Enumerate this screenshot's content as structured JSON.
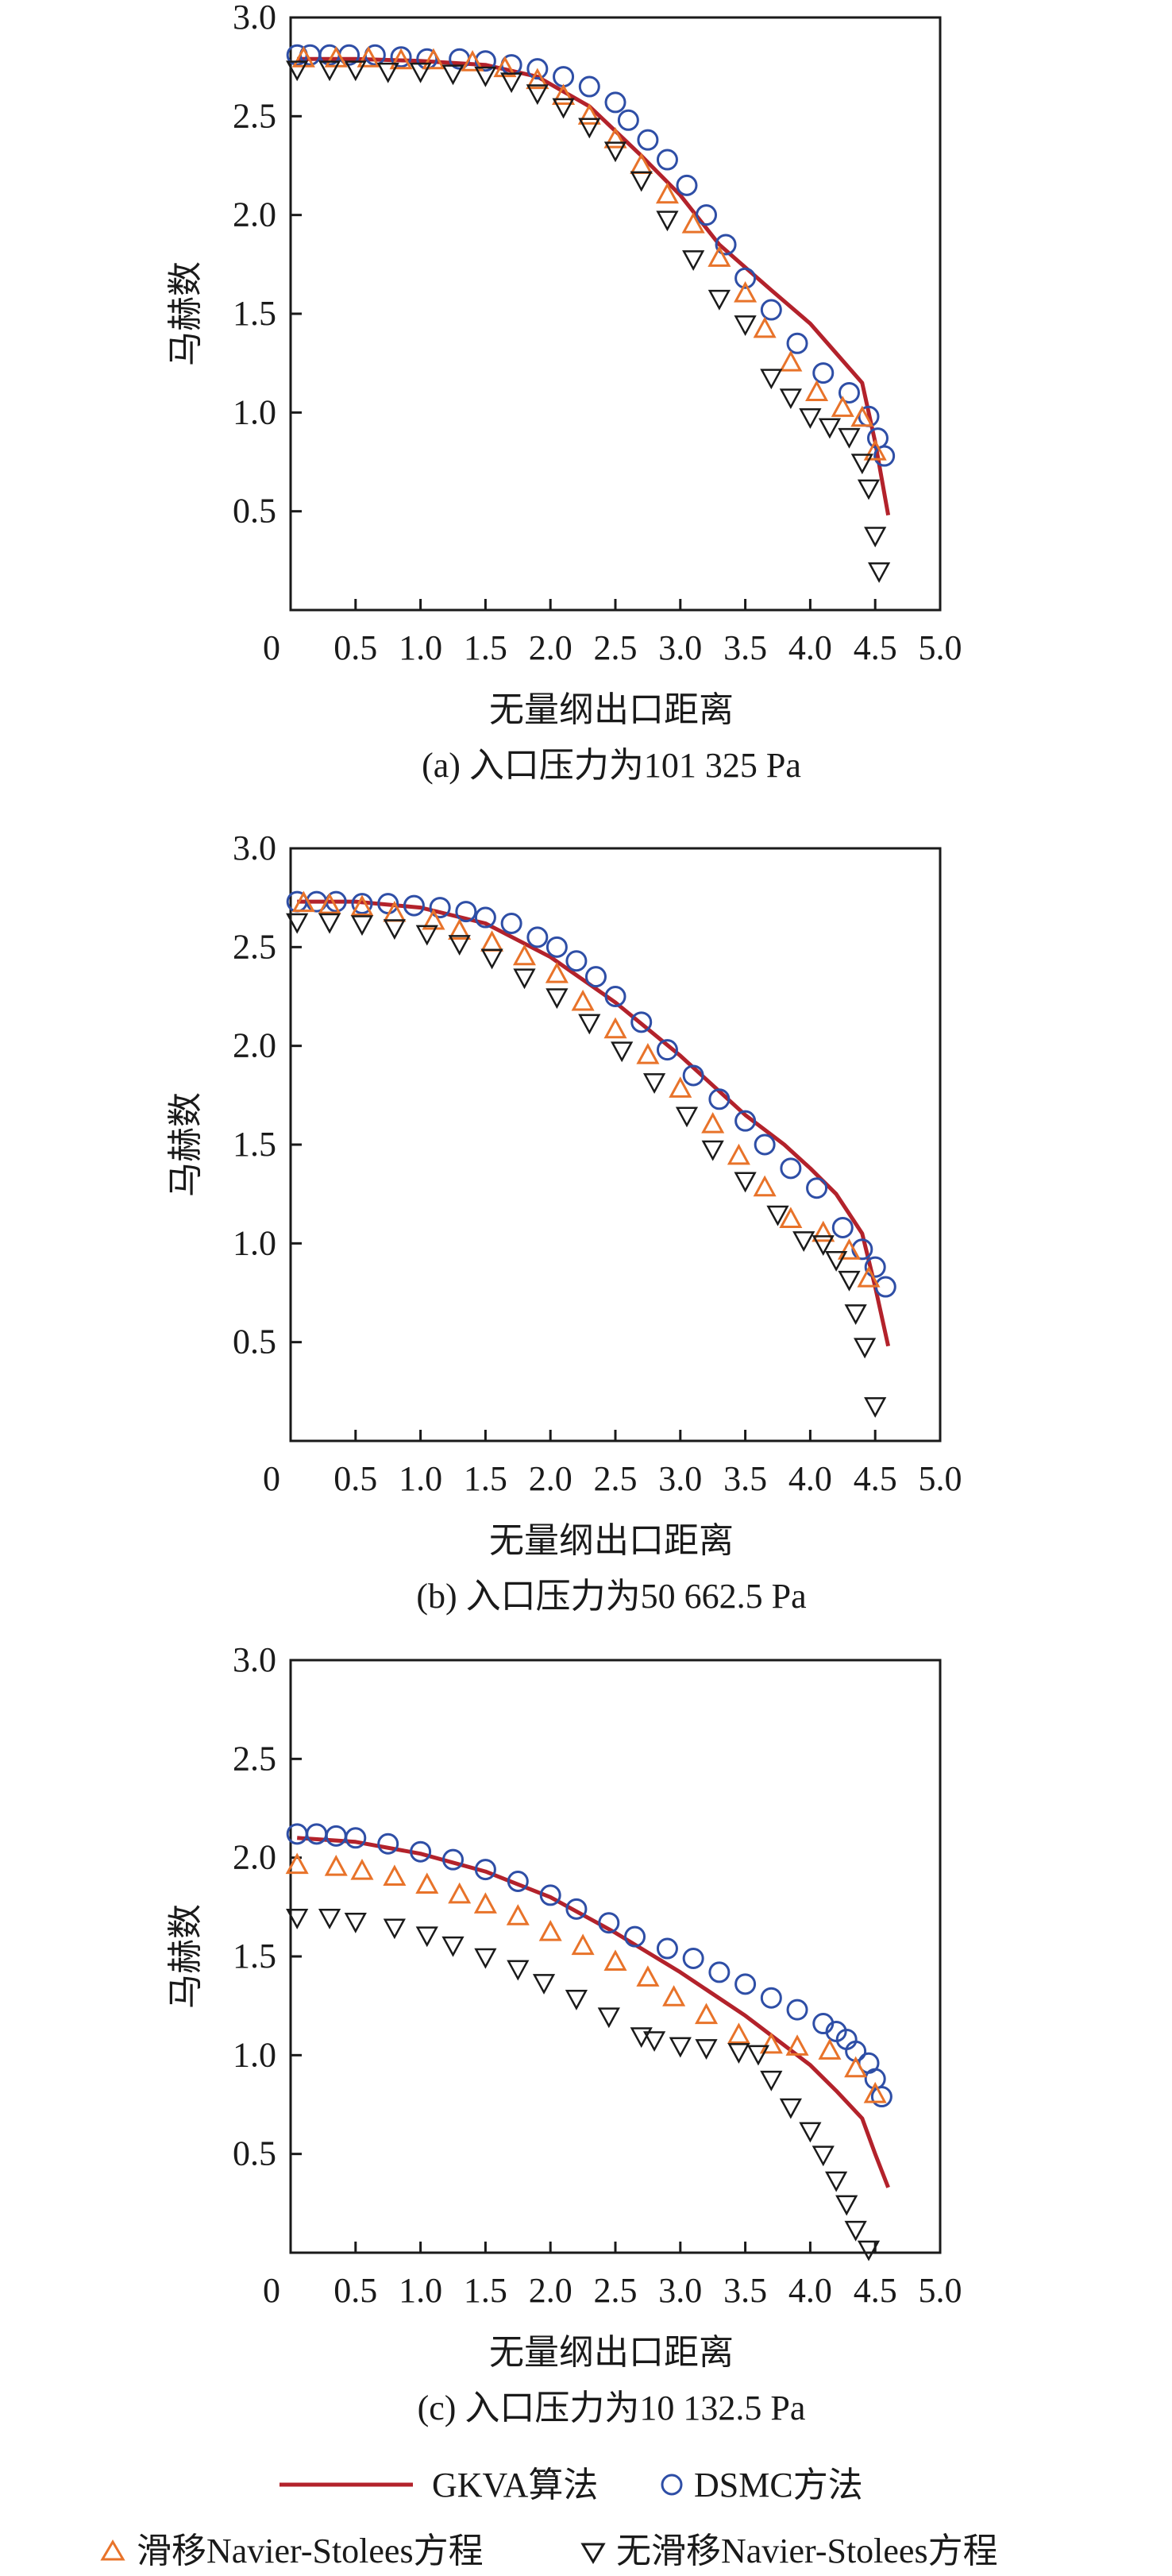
{
  "colors": {
    "gkva": "#b3222b",
    "dsmc": "#2e4ea6",
    "slip": "#e8732a",
    "noslip": "#1a1a1a",
    "axis": "#1a1a1a"
  },
  "legend": {
    "gkva": "GKVA算法",
    "dsmc": "DSMC方法",
    "slip": "滑移Navier-Stolees方程",
    "noslip": "无滑移Navier-Stolees方程"
  },
  "chart_data": [
    {
      "type": "line",
      "caption": "(a) 入口压力为101 325 Pa",
      "xlabel": "无量纲出口距离",
      "ylabel": "马赫数",
      "xlim": [
        0,
        5.0
      ],
      "ylim": [
        0,
        3.0
      ],
      "xticks": [
        0,
        0.5,
        1.0,
        1.5,
        2.0,
        2.5,
        3.0,
        3.5,
        4.0,
        4.5,
        5.0
      ],
      "xtick_labels": [
        "0",
        "0.5",
        "1.0",
        "1.5",
        "2.0",
        "2.5",
        "3.0",
        "3.5",
        "4.0",
        "4.5",
        "5.0"
      ],
      "yticks": [
        0.5,
        1.0,
        1.5,
        2.0,
        2.5,
        3.0
      ],
      "ytick_labels": [
        "0.5",
        "1.0",
        "1.5",
        "2.0",
        "2.5",
        "3.0"
      ],
      "series": [
        {
          "name": "GKVA算法",
          "marker": "line",
          "x": [
            0.05,
            0.5,
            1.0,
            1.5,
            1.9,
            2.3,
            2.7,
            3.0,
            3.3,
            3.7,
            4.0,
            4.2,
            4.4,
            4.5,
            4.6
          ],
          "y": [
            2.79,
            2.79,
            2.78,
            2.76,
            2.7,
            2.55,
            2.3,
            2.1,
            1.85,
            1.62,
            1.45,
            1.3,
            1.15,
            0.85,
            0.48
          ]
        },
        {
          "name": "DSMC方法",
          "marker": "circle",
          "x": [
            0.05,
            0.15,
            0.3,
            0.45,
            0.65,
            0.85,
            1.05,
            1.3,
            1.5,
            1.7,
            1.9,
            2.1,
            2.3,
            2.5,
            2.6,
            2.75,
            2.9,
            3.05,
            3.2,
            3.35,
            3.5,
            3.7,
            3.9,
            4.1,
            4.3,
            4.45,
            4.52,
            4.57
          ],
          "y": [
            2.81,
            2.81,
            2.81,
            2.81,
            2.81,
            2.8,
            2.79,
            2.79,
            2.78,
            2.76,
            2.74,
            2.7,
            2.65,
            2.57,
            2.48,
            2.38,
            2.28,
            2.15,
            2.0,
            1.85,
            1.68,
            1.52,
            1.35,
            1.2,
            1.1,
            0.98,
            0.87,
            0.78
          ]
        },
        {
          "name": "滑移Navier-Stolees方程",
          "marker": "triangle-up",
          "x": [
            0.1,
            0.35,
            0.6,
            0.85,
            1.1,
            1.4,
            1.65,
            1.9,
            2.1,
            2.3,
            2.5,
            2.7,
            2.9,
            3.1,
            3.3,
            3.5,
            3.65,
            3.85,
            4.05,
            4.25,
            4.4,
            4.5
          ],
          "y": [
            2.79,
            2.79,
            2.79,
            2.78,
            2.78,
            2.77,
            2.74,
            2.68,
            2.6,
            2.5,
            2.38,
            2.25,
            2.1,
            1.95,
            1.78,
            1.6,
            1.42,
            1.25,
            1.1,
            1.02,
            0.97,
            0.8
          ]
        },
        {
          "name": "无滑移Navier-Stolees方程",
          "marker": "triangle-down",
          "x": [
            0.05,
            0.3,
            0.5,
            0.75,
            1.0,
            1.25,
            1.5,
            1.7,
            1.9,
            2.1,
            2.3,
            2.5,
            2.7,
            2.9,
            3.1,
            3.3,
            3.5,
            3.7,
            3.85,
            4.0,
            4.15,
            4.3,
            4.4,
            4.45,
            4.5,
            4.53
          ],
          "y": [
            2.74,
            2.74,
            2.74,
            2.73,
            2.73,
            2.72,
            2.71,
            2.68,
            2.62,
            2.55,
            2.45,
            2.33,
            2.18,
            1.98,
            1.78,
            1.58,
            1.45,
            1.18,
            1.08,
            0.98,
            0.93,
            0.88,
            0.75,
            0.62,
            0.38,
            0.2
          ]
        }
      ]
    },
    {
      "type": "line",
      "caption": "(b) 入口压力为50 662.5 Pa",
      "xlabel": "无量纲出口距离",
      "ylabel": "马赫数",
      "xlim": [
        0,
        5.0
      ],
      "ylim": [
        0,
        3.0
      ],
      "xticks": [
        0,
        0.5,
        1.0,
        1.5,
        2.0,
        2.5,
        3.0,
        3.5,
        4.0,
        4.5,
        5.0
      ],
      "xtick_labels": [
        "0",
        "0.5",
        "1.0",
        "1.5",
        "2.0",
        "2.5",
        "3.0",
        "3.5",
        "4.0",
        "4.5",
        "5.0"
      ],
      "yticks": [
        0.5,
        1.0,
        1.5,
        2.0,
        2.5,
        3.0
      ],
      "ytick_labels": [
        "0.5",
        "1.0",
        "1.5",
        "2.0",
        "2.5",
        "3.0"
      ],
      "series": [
        {
          "name": "GKVA算法",
          "marker": "line",
          "x": [
            0.05,
            0.5,
            1.0,
            1.5,
            2.0,
            2.5,
            3.0,
            3.5,
            3.8,
            4.0,
            4.2,
            4.4,
            4.5,
            4.6
          ],
          "y": [
            2.73,
            2.73,
            2.7,
            2.62,
            2.45,
            2.22,
            1.95,
            1.65,
            1.5,
            1.38,
            1.25,
            1.05,
            0.78,
            0.48
          ]
        },
        {
          "name": "DSMC方法",
          "marker": "circle",
          "x": [
            0.05,
            0.2,
            0.35,
            0.55,
            0.75,
            0.95,
            1.15,
            1.35,
            1.5,
            1.7,
            1.9,
            2.05,
            2.2,
            2.35,
            2.5,
            2.7,
            2.9,
            3.1,
            3.3,
            3.5,
            3.65,
            3.85,
            4.05,
            4.25,
            4.4,
            4.5,
            4.58
          ],
          "y": [
            2.73,
            2.73,
            2.73,
            2.72,
            2.72,
            2.71,
            2.7,
            2.68,
            2.65,
            2.62,
            2.55,
            2.5,
            2.43,
            2.35,
            2.25,
            2.12,
            1.98,
            1.85,
            1.73,
            1.62,
            1.5,
            1.38,
            1.28,
            1.08,
            0.97,
            0.88,
            0.78
          ]
        },
        {
          "name": "滑移Navier-Stolees方程",
          "marker": "triangle-up",
          "x": [
            0.1,
            0.3,
            0.55,
            0.8,
            1.1,
            1.3,
            1.55,
            1.8,
            2.05,
            2.25,
            2.5,
            2.75,
            3.0,
            3.25,
            3.45,
            3.65,
            3.85,
            4.1,
            4.3,
            4.45
          ],
          "y": [
            2.72,
            2.71,
            2.7,
            2.67,
            2.63,
            2.58,
            2.52,
            2.45,
            2.36,
            2.22,
            2.08,
            1.95,
            1.78,
            1.6,
            1.44,
            1.28,
            1.12,
            1.05,
            0.96,
            0.82
          ]
        },
        {
          "name": "无滑移Navier-Stolees方程",
          "marker": "triangle-down",
          "x": [
            0.05,
            0.3,
            0.55,
            0.8,
            1.05,
            1.3,
            1.55,
            1.8,
            2.05,
            2.3,
            2.55,
            2.8,
            3.05,
            3.25,
            3.5,
            3.75,
            3.95,
            4.1,
            4.2,
            4.3,
            4.35,
            4.42,
            4.5
          ],
          "y": [
            2.63,
            2.63,
            2.62,
            2.6,
            2.57,
            2.52,
            2.45,
            2.35,
            2.25,
            2.12,
            1.98,
            1.82,
            1.65,
            1.48,
            1.32,
            1.15,
            1.02,
            1.0,
            0.92,
            0.82,
            0.65,
            0.48,
            0.18
          ]
        }
      ]
    },
    {
      "type": "line",
      "caption": "(c) 入口压力为10 132.5 Pa",
      "xlabel": "无量纲出口距离",
      "ylabel": "马赫数",
      "xlim": [
        0,
        5.0
      ],
      "ylim": [
        0,
        3.0
      ],
      "xticks": [
        0,
        0.5,
        1.0,
        1.5,
        2.0,
        2.5,
        3.0,
        3.5,
        4.0,
        4.5,
        5.0
      ],
      "xtick_labels": [
        "0",
        "0.5",
        "1.0",
        "1.5",
        "2.0",
        "2.5",
        "3.0",
        "3.5",
        "4.0",
        "4.5",
        "5.0"
      ],
      "yticks": [
        0.5,
        1.0,
        1.5,
        2.0,
        2.5,
        3.0
      ],
      "ytick_labels": [
        "0.5",
        "1.0",
        "1.5",
        "2.0",
        "2.5",
        "3.0"
      ],
      "series": [
        {
          "name": "GKVA算法",
          "marker": "line",
          "x": [
            0.05,
            0.5,
            1.0,
            1.5,
            2.0,
            2.5,
            3.0,
            3.5,
            3.8,
            4.0,
            4.2,
            4.4,
            4.5,
            4.6
          ],
          "y": [
            2.1,
            2.08,
            2.02,
            1.93,
            1.8,
            1.62,
            1.42,
            1.2,
            1.05,
            0.95,
            0.82,
            0.68,
            0.5,
            0.33
          ]
        },
        {
          "name": "DSMC方法",
          "marker": "circle",
          "x": [
            0.05,
            0.2,
            0.35,
            0.5,
            0.75,
            1.0,
            1.25,
            1.5,
            1.75,
            2.0,
            2.2,
            2.45,
            2.65,
            2.9,
            3.1,
            3.3,
            3.5,
            3.7,
            3.9,
            4.1,
            4.2,
            4.28,
            4.35,
            4.45,
            4.5,
            4.55
          ],
          "y": [
            2.12,
            2.12,
            2.11,
            2.1,
            2.07,
            2.03,
            1.99,
            1.94,
            1.88,
            1.81,
            1.74,
            1.67,
            1.6,
            1.54,
            1.49,
            1.42,
            1.36,
            1.29,
            1.23,
            1.16,
            1.12,
            1.08,
            1.02,
            0.96,
            0.88,
            0.79
          ]
        },
        {
          "name": "滑移Navier-Stolees方程",
          "marker": "triangle-up",
          "x": [
            0.05,
            0.35,
            0.55,
            0.8,
            1.05,
            1.3,
            1.5,
            1.75,
            2.0,
            2.25,
            2.5,
            2.75,
            2.95,
            3.2,
            3.45,
            3.7,
            3.9,
            4.15,
            4.35,
            4.5
          ],
          "y": [
            1.96,
            1.95,
            1.93,
            1.9,
            1.86,
            1.81,
            1.76,
            1.7,
            1.62,
            1.55,
            1.47,
            1.39,
            1.29,
            1.2,
            1.1,
            1.05,
            1.04,
            1.02,
            0.93,
            0.8
          ]
        },
        {
          "name": "无滑移Navier-Stolees方程",
          "marker": "triangle-down",
          "x": [
            0.05,
            0.3,
            0.5,
            0.8,
            1.05,
            1.25,
            1.5,
            1.75,
            1.95,
            2.2,
            2.45,
            2.7,
            2.8,
            3.0,
            3.2,
            3.45,
            3.6,
            3.7,
            3.85,
            4.0,
            4.1,
            4.2,
            4.28,
            4.35,
            4.45
          ],
          "y": [
            1.7,
            1.7,
            1.68,
            1.65,
            1.61,
            1.56,
            1.5,
            1.44,
            1.37,
            1.29,
            1.2,
            1.1,
            1.08,
            1.05,
            1.04,
            1.02,
            1.01,
            0.88,
            0.74,
            0.62,
            0.5,
            0.37,
            0.25,
            0.12,
            0.02
          ]
        }
      ]
    }
  ]
}
